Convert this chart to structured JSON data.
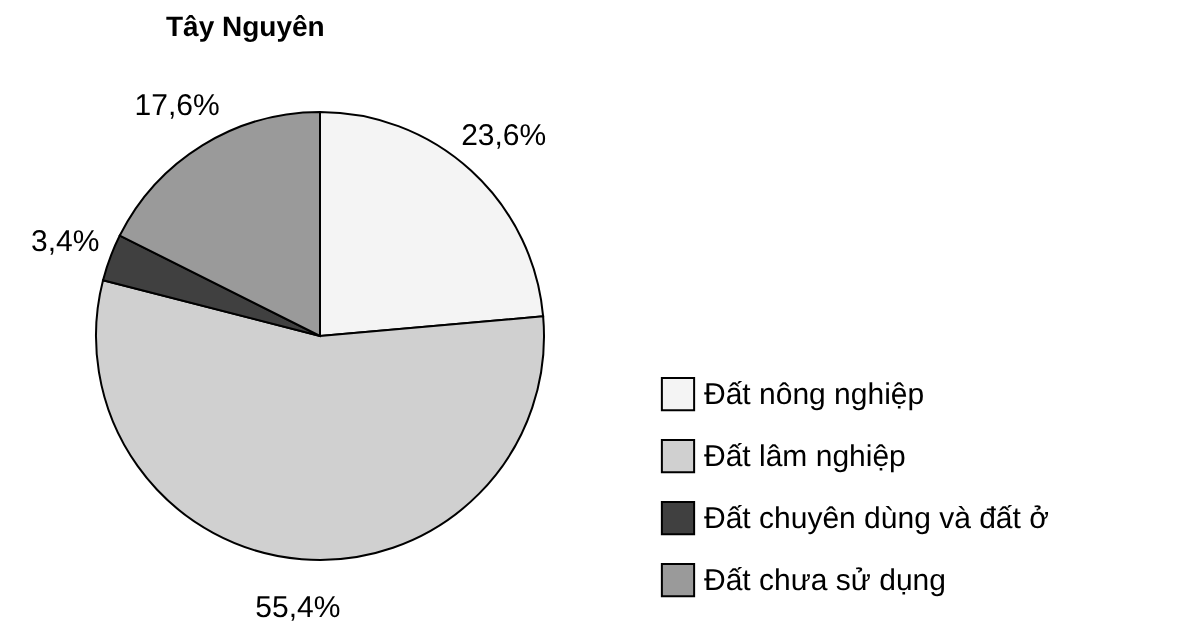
{
  "chart_data": {
    "type": "pie",
    "title": "Tây Nguyên",
    "categories": [
      "Đất nông nghiệp",
      "Đất lâm nghiệp",
      "Đất chuyên dùng và đất ở",
      "Đất chưa sử dụng"
    ],
    "values": [
      23.6,
      55.4,
      3.4,
      17.6
    ],
    "value_labels": [
      "23,6%",
      "55,4%",
      "3,4%",
      "17,6%"
    ],
    "colors": [
      "#f4f4f4",
      "#d0d0d0",
      "#404040",
      "#9a9a9a"
    ],
    "legend": "bottom right"
  }
}
